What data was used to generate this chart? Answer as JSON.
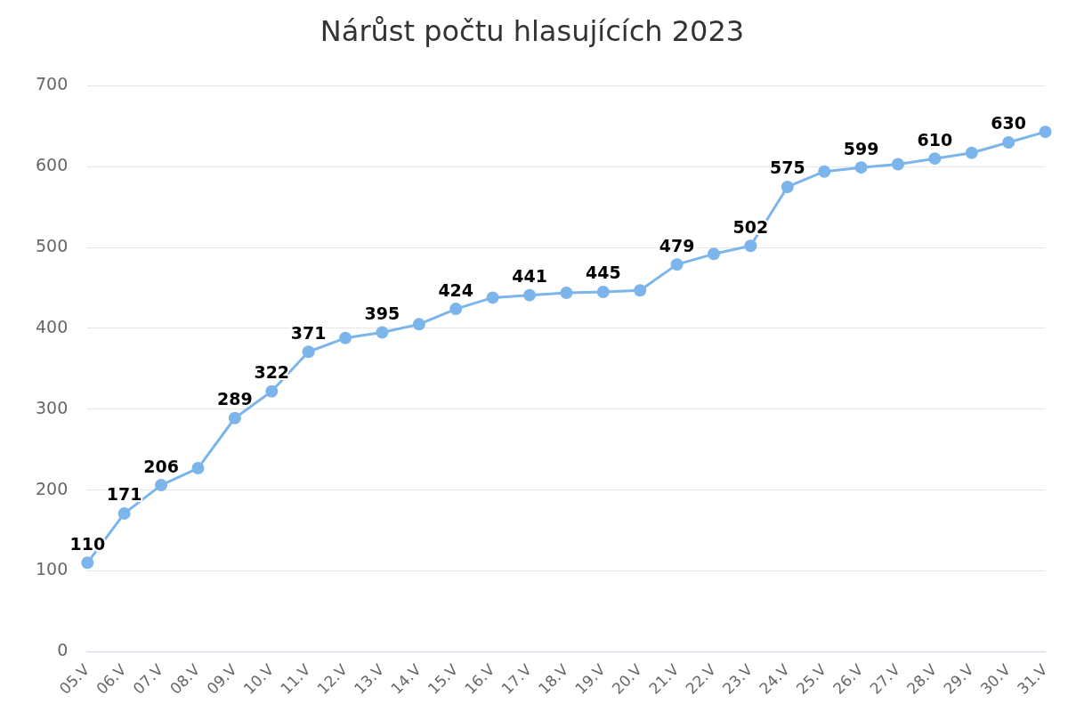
{
  "chart_data": {
    "type": "line",
    "title": "Nárůst počtu hlasujících 2023",
    "categories": [
      "05.V",
      "06.V",
      "07.V",
      "08.V",
      "09.V",
      "10.V",
      "11.V",
      "12.V",
      "13.V",
      "14.V",
      "15.V",
      "16.V",
      "17.V",
      "18.V",
      "19.V",
      "20.V",
      "21.V",
      "22.V",
      "23.V",
      "24.V",
      "25.V",
      "26.V",
      "27.V",
      "28.V",
      "29.V",
      "30.V",
      "31.V"
    ],
    "values": [
      110,
      171,
      206,
      227,
      289,
      322,
      371,
      388,
      395,
      405,
      424,
      438,
      441,
      444,
      445,
      447,
      479,
      492,
      502,
      575,
      594,
      599,
      603,
      610,
      617,
      630,
      643
    ],
    "value_labels": [
      "110",
      "171",
      "206",
      null,
      "289",
      "322",
      "371",
      null,
      "395",
      null,
      "424",
      null,
      "441",
      null,
      "445",
      null,
      "479",
      null,
      "502",
      "575",
      null,
      "599",
      null,
      "610",
      null,
      "630",
      null
    ],
    "color": "#7cb5ec",
    "marker": "circle",
    "line_style": "solid",
    "ylim": [
      0,
      700
    ],
    "yticks": [
      0,
      100,
      200,
      300,
      400,
      500,
      600,
      700
    ],
    "grid": "y",
    "legend": false
  }
}
